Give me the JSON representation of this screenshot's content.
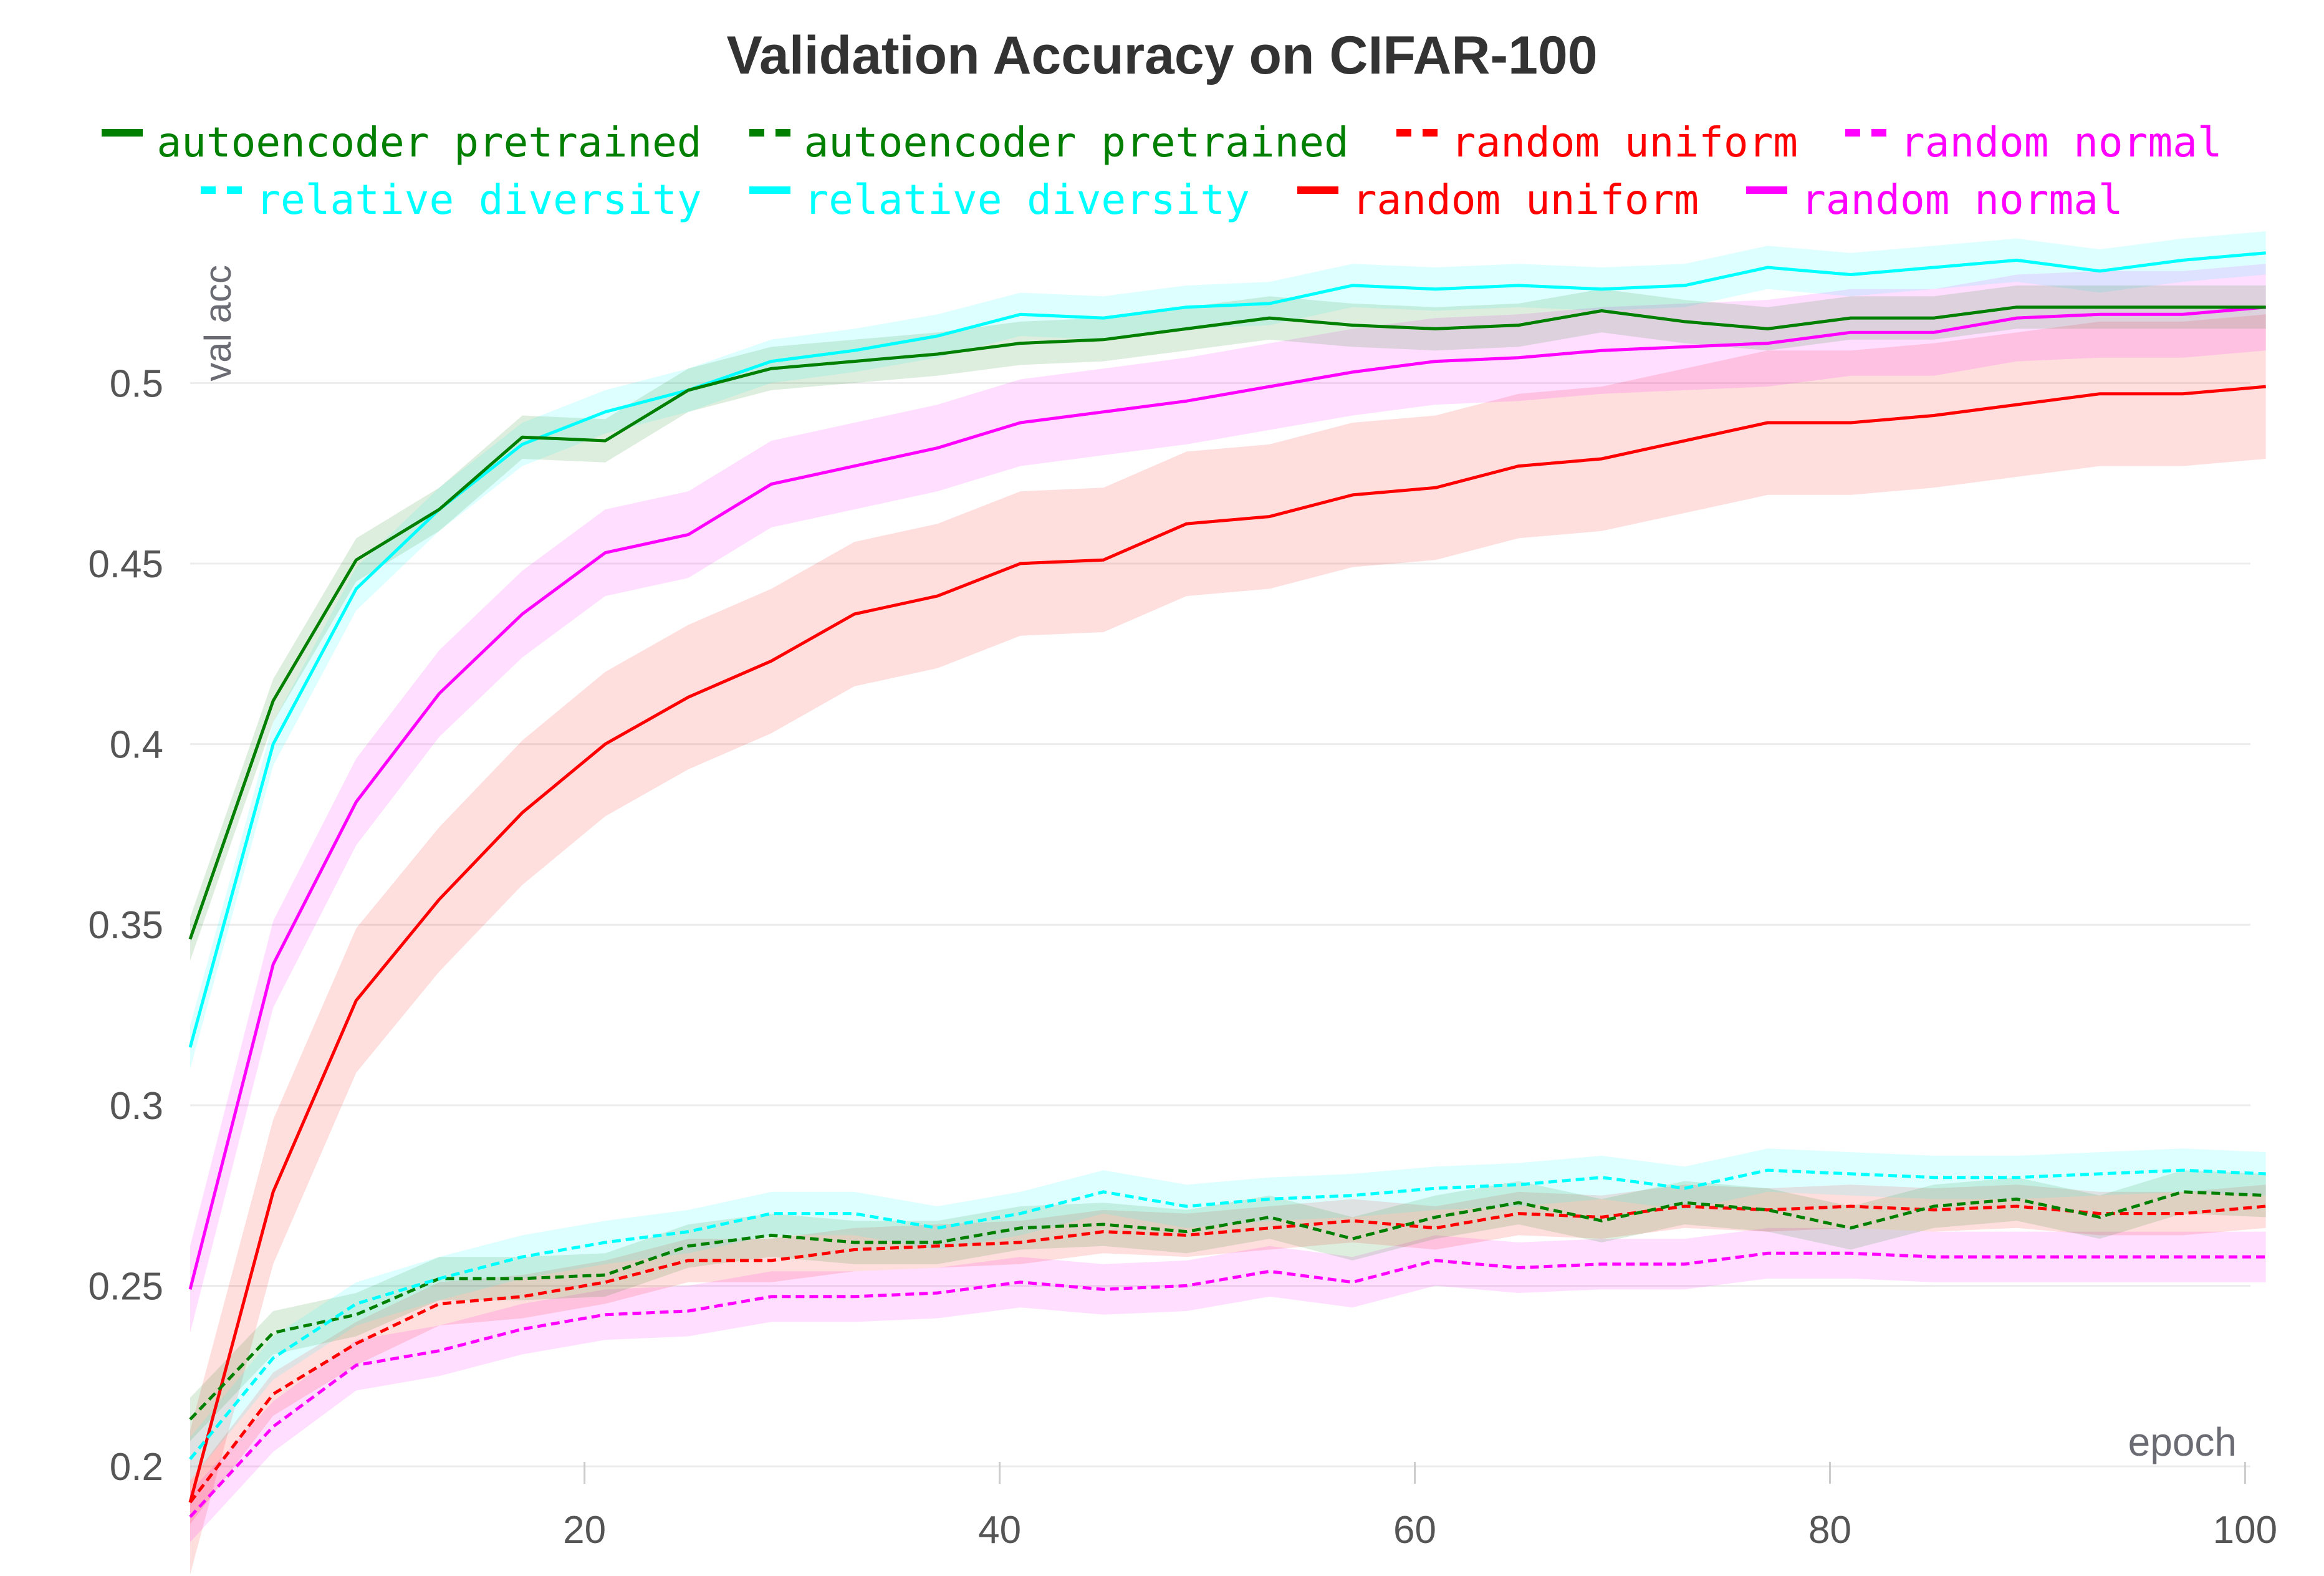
{
  "chart_data": {
    "type": "line",
    "title": "Validation Accuracy on CIFAR-100",
    "xlabel": "epoch",
    "ylabel": "val acc",
    "xlim": [
      1,
      102
    ],
    "ylim": [
      0.19,
      0.537
    ],
    "x_ticks": [
      20,
      40,
      60,
      80,
      100
    ],
    "y_ticks": [
      0.2,
      0.25,
      0.3,
      0.35,
      0.4,
      0.45,
      0.5
    ],
    "y_tick_labels": [
      "0.2",
      "0.25",
      "0.3",
      "0.35",
      "0.4",
      "0.45",
      "0.5"
    ],
    "grid": true,
    "legend_position": "top",
    "legend": [
      {
        "label": "autoencoder pretrained",
        "color": "#007f00",
        "style": "solid"
      },
      {
        "label": "autoencoder pretrained",
        "color": "#007f00",
        "style": "dashed"
      },
      {
        "label": "random uniform",
        "color": "#ff0000",
        "style": "dashed"
      },
      {
        "label": "random normal",
        "color": "#ff00ff",
        "style": "dashed"
      },
      {
        "label": "relative diversity",
        "color": "#00ffff",
        "style": "dashed"
      },
      {
        "label": "relative diversity",
        "color": "#00ffff",
        "style": "solid"
      },
      {
        "label": "random uniform",
        "color": "#ff0000",
        "style": "solid"
      },
      {
        "label": "random normal",
        "color": "#ff00ff",
        "style": "solid"
      }
    ],
    "x": [
      1,
      5,
      9,
      13,
      17,
      21,
      25,
      29,
      33,
      37,
      41,
      45,
      49,
      53,
      57,
      61,
      65,
      69,
      73,
      77,
      81,
      85,
      89,
      93,
      97,
      101
    ],
    "series": [
      {
        "name": "random uniform",
        "style": "solid",
        "color": "#ff0000",
        "band": 0.02,
        "values": [
          0.19,
          0.276,
          0.329,
          0.357,
          0.381,
          0.4,
          0.413,
          0.423,
          0.436,
          0.441,
          0.45,
          0.451,
          0.461,
          0.463,
          0.469,
          0.471,
          0.477,
          0.479,
          0.484,
          0.489,
          0.489,
          0.491,
          0.494,
          0.497,
          0.497,
          0.499
        ]
      },
      {
        "name": "random normal",
        "style": "solid",
        "color": "#ff00ff",
        "band": 0.012,
        "values": [
          0.249,
          0.339,
          0.384,
          0.414,
          0.436,
          0.453,
          0.458,
          0.472,
          0.477,
          0.482,
          0.489,
          0.492,
          0.495,
          0.499,
          0.503,
          0.506,
          0.507,
          0.509,
          0.51,
          0.511,
          0.514,
          0.514,
          0.518,
          0.519,
          0.519,
          0.521
        ]
      },
      {
        "name": "relative diversity",
        "style": "solid",
        "color": "#00ffff",
        "band": 0.006,
        "values": [
          0.316,
          0.4,
          0.443,
          0.465,
          0.483,
          0.492,
          0.498,
          0.506,
          0.509,
          0.513,
          0.519,
          0.518,
          0.521,
          0.522,
          0.527,
          0.526,
          0.527,
          0.526,
          0.527,
          0.532,
          0.53,
          0.532,
          0.534,
          0.531,
          0.534,
          0.536
        ]
      },
      {
        "name": "autoencoder pretrained",
        "style": "solid",
        "color": "#007f00",
        "band": 0.006,
        "values": [
          0.346,
          0.412,
          0.451,
          0.465,
          0.485,
          0.484,
          0.498,
          0.504,
          0.506,
          0.508,
          0.511,
          0.512,
          0.515,
          0.518,
          0.516,
          0.515,
          0.516,
          0.52,
          0.517,
          0.515,
          0.518,
          0.518,
          0.521,
          0.521,
          0.521,
          0.521
        ]
      },
      {
        "name": "random normal",
        "style": "dashed",
        "color": "#ff00ff",
        "band": 0.007,
        "values": [
          0.186,
          0.211,
          0.228,
          0.232,
          0.238,
          0.242,
          0.243,
          0.247,
          0.247,
          0.248,
          0.251,
          0.249,
          0.25,
          0.254,
          0.251,
          0.257,
          0.255,
          0.256,
          0.256,
          0.259,
          0.259,
          0.258,
          0.258,
          0.258,
          0.258,
          0.258
        ]
      },
      {
        "name": "random uniform",
        "style": "dashed",
        "color": "#ff0000",
        "band": 0.006,
        "values": [
          0.19,
          0.22,
          0.234,
          0.245,
          0.247,
          0.251,
          0.257,
          0.257,
          0.26,
          0.261,
          0.262,
          0.265,
          0.264,
          0.266,
          0.268,
          0.266,
          0.27,
          0.269,
          0.272,
          0.271,
          0.272,
          0.271,
          0.272,
          0.27,
          0.27,
          0.272
        ]
      },
      {
        "name": "autoencoder pretrained",
        "style": "dashed",
        "color": "#007f00",
        "band": 0.006,
        "values": [
          0.213,
          0.237,
          0.242,
          0.252,
          0.252,
          0.253,
          0.261,
          0.264,
          0.262,
          0.262,
          0.266,
          0.267,
          0.265,
          0.269,
          0.263,
          0.269,
          0.273,
          0.268,
          0.273,
          0.271,
          0.266,
          0.272,
          0.274,
          0.269,
          0.276,
          0.275
        ]
      },
      {
        "name": "relative diversity",
        "style": "dashed",
        "color": "#00ffff",
        "band": 0.006,
        "values": [
          0.202,
          0.23,
          0.245,
          0.252,
          0.258,
          0.262,
          0.265,
          0.27,
          0.27,
          0.266,
          0.27,
          0.276,
          0.272,
          0.274,
          0.275,
          0.277,
          0.278,
          0.28,
          0.277,
          0.282,
          0.281,
          0.28,
          0.28,
          0.281,
          0.282,
          0.281
        ]
      }
    ]
  }
}
